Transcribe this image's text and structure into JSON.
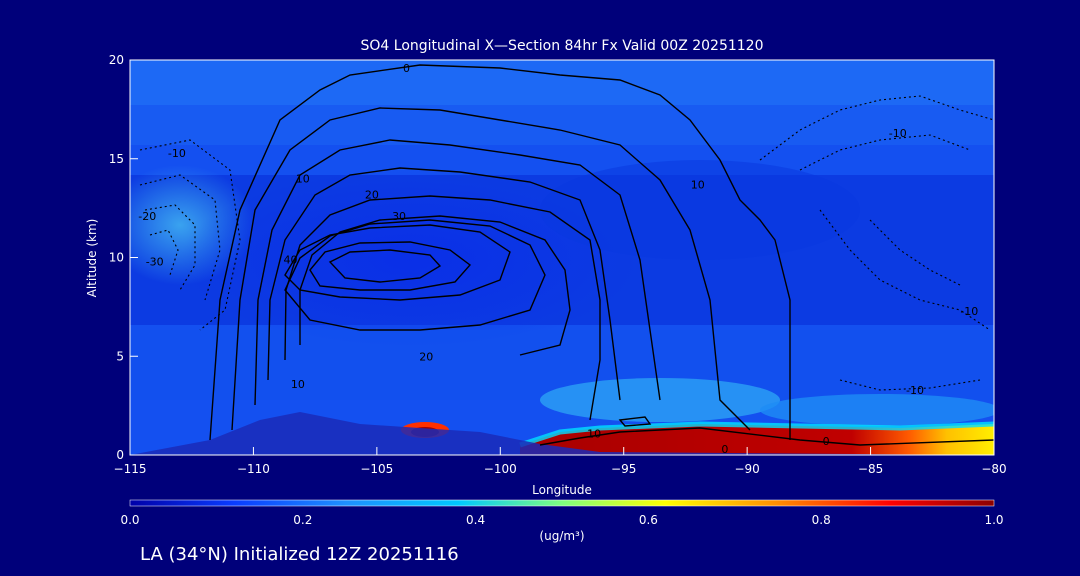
{
  "chart_data": {
    "type": "heatmap",
    "title": "SO4 Longitudinal X—Section 84hr  Fx Valid 00Z 20251120",
    "xlabel": "Longitude",
    "ylabel": "Altitude (km)",
    "xlim": [
      -115,
      -80
    ],
    "ylim": [
      0,
      20
    ],
    "x_ticks": [
      -115,
      -110,
      -105,
      -100,
      -95,
      -90,
      -85,
      -80
    ],
    "x_tick_labels": [
      "−115",
      "−110",
      "−105",
      "−100",
      "−95",
      "−90",
      "−85",
      "−80"
    ],
    "y_ticks": [
      0,
      5,
      10,
      15,
      20
    ],
    "y_tick_labels": [
      "0",
      "5",
      "10",
      "15",
      "20"
    ],
    "colorbar": {
      "label": "(ug/m³)",
      "range": [
        0.0,
        1.0
      ],
      "ticks": [
        0.0,
        0.2,
        0.4,
        0.6,
        0.8,
        1.0
      ],
      "tick_labels": [
        "0.0",
        "0.2",
        "0.4",
        "0.6",
        "0.8",
        "1.0"
      ],
      "colors": [
        "#0000a8",
        "#0a3cff",
        "#1e90ff",
        "#00c8ff",
        "#7fff7f",
        "#ffff00",
        "#ff8c00",
        "#ff0000",
        "#8b0000"
      ]
    },
    "contour_labels": [
      {
        "text": "0",
        "lon": -103.8,
        "alt": 19.6
      },
      {
        "text": "10",
        "lon": -108.0,
        "alt": 14.0
      },
      {
        "text": "20",
        "lon": -105.2,
        "alt": 13.2
      },
      {
        "text": "30",
        "lon": -104.1,
        "alt": 12.1
      },
      {
        "text": "40",
        "lon": -108.5,
        "alt": 9.9
      },
      {
        "text": "20",
        "lon": -103.0,
        "alt": 5.0
      },
      {
        "text": "10",
        "lon": -108.2,
        "alt": 3.6
      },
      {
        "text": "10",
        "lon": -92.0,
        "alt": 13.7
      },
      {
        "text": "10",
        "lon": -96.2,
        "alt": 1.1
      },
      {
        "text": "0",
        "lon": -90.9,
        "alt": 0.3
      },
      {
        "text": "0",
        "lon": -86.8,
        "alt": 0.7
      },
      {
        "text": "-10",
        "lon": -113.1,
        "alt": 15.3
      },
      {
        "text": "-20",
        "lon": -114.3,
        "alt": 12.1
      },
      {
        "text": "-30",
        "lon": -114.0,
        "alt": 9.8
      },
      {
        "text": "-10",
        "lon": -83.9,
        "alt": 16.3
      },
      {
        "text": "-10",
        "lon": -81.0,
        "alt": 7.3
      },
      {
        "text": "-10",
        "lon": -83.2,
        "alt": 3.3
      }
    ]
  },
  "footer": {
    "caption": "LA (34°N) Initialized 12Z 20251116"
  }
}
